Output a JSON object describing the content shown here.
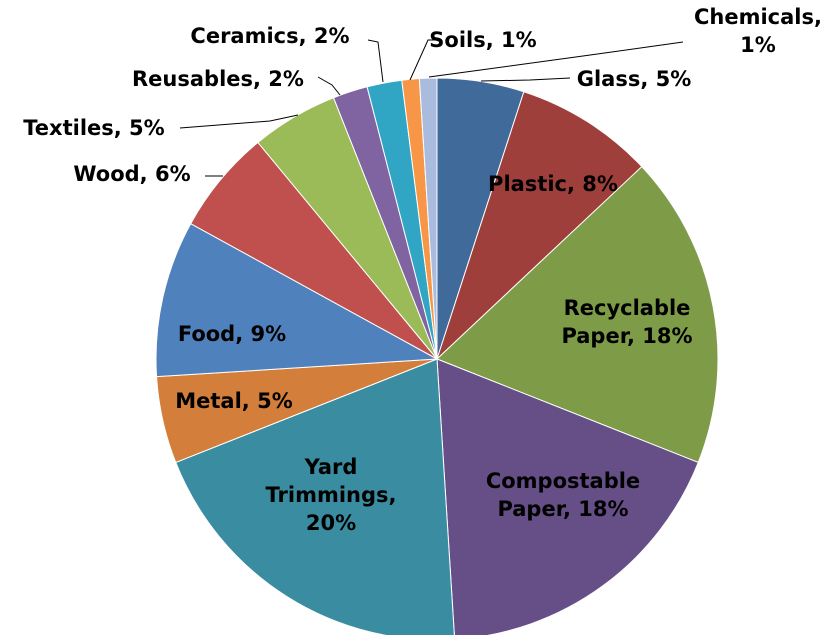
{
  "chart_data": {
    "type": "pie",
    "slices": [
      {
        "name": "Glass",
        "value": 5,
        "color": "#3F6A9A",
        "label": [
          "Glass, 5%"
        ]
      },
      {
        "name": "Plastic",
        "value": 8,
        "color": "#9F3F3C",
        "label": [
          "Plastic, 8%"
        ]
      },
      {
        "name": "Recyclable Paper",
        "value": 18,
        "color": "#7E9B47",
        "label": [
          "Recyclable",
          "Paper, 18%"
        ]
      },
      {
        "name": "Compostable Paper",
        "value": 18,
        "color": "#664F87",
        "label": [
          "Compostable",
          "Paper, 18%"
        ]
      },
      {
        "name": "Yard Trimmings",
        "value": 20,
        "color": "#3A8CA1",
        "label": [
          "Yard",
          "Trimmings,",
          "20%"
        ]
      },
      {
        "name": "Metal",
        "value": 5,
        "color": "#D37E3A",
        "label": [
          "Metal, 5%"
        ]
      },
      {
        "name": "Food",
        "value": 9,
        "color": "#4F81BD",
        "label": [
          "Food, 9%"
        ]
      },
      {
        "name": "Wood",
        "value": 6,
        "color": "#C0504D",
        "label": [
          "Wood, 6%"
        ]
      },
      {
        "name": "Textiles",
        "value": 5,
        "color": "#9BBB59",
        "label": [
          "Textiles, 5%"
        ]
      },
      {
        "name": "Reusables",
        "value": 2,
        "color": "#8064A2",
        "label": [
          "Reusables, 2%"
        ]
      },
      {
        "name": "Ceramics",
        "value": 2,
        "color": "#31A5C4",
        "label": [
          "Ceramics, 2%"
        ]
      },
      {
        "name": "Soils",
        "value": 1,
        "color": "#F79646",
        "label": [
          "Soils, 1%"
        ]
      },
      {
        "name": "Chemicals",
        "value": 1,
        "color": "#A9BCDD",
        "label": [
          "Chemicals,",
          "1%"
        ]
      }
    ],
    "start_angle_deg": 0,
    "direction": "clockwise",
    "legend": "none"
  }
}
